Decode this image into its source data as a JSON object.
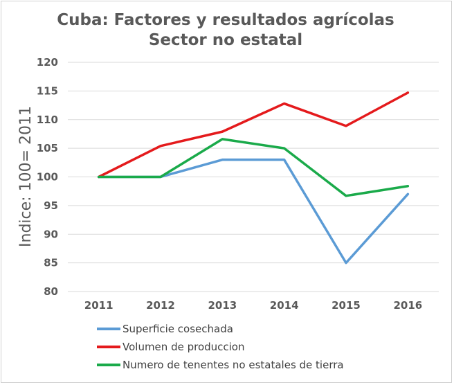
{
  "chart_data": {
    "type": "line",
    "title": [
      "Cuba: Factores y resultados agrícolas",
      "Sector no estatal"
    ],
    "xlabel": "",
    "ylabel": "Indice: 100= 2011",
    "ylim": [
      80,
      120
    ],
    "yticks": [
      80,
      85,
      90,
      95,
      100,
      105,
      110,
      115,
      120
    ],
    "categories": [
      "2011",
      "2012",
      "2013",
      "2014",
      "2015",
      "2016"
    ],
    "grid": true,
    "legend_position": "bottom",
    "series": [
      {
        "name": "Superficie cosechada",
        "color": "#5b9bd5",
        "values": [
          100,
          100,
          103,
          103,
          85,
          97
        ]
      },
      {
        "name": "Volumen de produccion",
        "color": "#e41a1c",
        "values": [
          100,
          105.4,
          107.9,
          112.8,
          108.9,
          114.7
        ]
      },
      {
        "name": "Numero de tenentes no estatales de tierra",
        "color": "#1aaa4a",
        "values": [
          100,
          100,
          106.6,
          105,
          96.7,
          98.4
        ]
      }
    ]
  }
}
